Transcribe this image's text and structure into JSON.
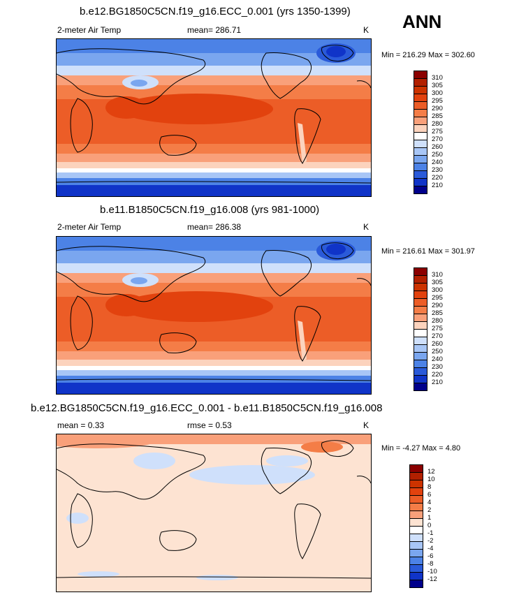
{
  "season": "ANN",
  "panels": [
    {
      "title": "b.e12.BG1850C5CN.f19_g16.ECC_0.001 (yrs 1350-1399)",
      "left_label": "2-meter Air Temp",
      "mean_label": "mean= 286.71",
      "rmse_label": "",
      "units": "K",
      "minmax": "Min = 216.29 Max = 302.60",
      "colorbar_labels": [
        "310",
        "305",
        "300",
        "295",
        "290",
        "285",
        "280",
        "275",
        "270",
        "260",
        "250",
        "240",
        "230",
        "220",
        "210"
      ],
      "colors": [
        "#8b0000",
        "#b22000",
        "#cc3300",
        "#e2420e",
        "#ec5d27",
        "#f47d47",
        "#f9a07a",
        "#fcd3bd",
        "#ffffff",
        "#cfe0fb",
        "#a8c6f6",
        "#7aa6ef",
        "#4c82e6",
        "#2a5ad9",
        "#1034c8",
        "#00008b"
      ]
    },
    {
      "title": "b.e11.B1850C5CN.f19_g16.008 (yrs 981-1000)",
      "left_label": "2-meter Air Temp",
      "mean_label": "mean= 286.38",
      "rmse_label": "",
      "units": "K",
      "minmax": "Min = 216.61 Max = 301.97",
      "colorbar_labels": [
        "310",
        "305",
        "300",
        "295",
        "290",
        "285",
        "280",
        "275",
        "270",
        "260",
        "250",
        "240",
        "230",
        "220",
        "210"
      ],
      "colors": [
        "#8b0000",
        "#b22000",
        "#cc3300",
        "#e2420e",
        "#ec5d27",
        "#f47d47",
        "#f9a07a",
        "#fcd3bd",
        "#ffffff",
        "#cfe0fb",
        "#a8c6f6",
        "#7aa6ef",
        "#4c82e6",
        "#2a5ad9",
        "#1034c8",
        "#00008b"
      ]
    },
    {
      "title": "b.e12.BG1850C5CN.f19_g16.ECC_0.001 - b.e11.B1850C5CN.f19_g16.008",
      "left_label": "mean =   0.33",
      "mean_label": "rmse =   0.53",
      "rmse_label": "",
      "units": "K",
      "minmax": "Min =  -4.27 Max =   4.80",
      "colorbar_labels": [
        "12",
        "10",
        "8",
        "6",
        "4",
        "2",
        "1",
        "0",
        "-1",
        "-2",
        "-4",
        "-6",
        "-8",
        "-10",
        "-12"
      ],
      "colors": [
        "#8b0000",
        "#b22000",
        "#cc3300",
        "#e2420e",
        "#ec5d27",
        "#f47d47",
        "#f9a07a",
        "#fde3d2",
        "#ffffff",
        "#cfe0fb",
        "#a8c6f6",
        "#7aa6ef",
        "#4c82e6",
        "#2a5ad9",
        "#1034c8",
        "#00008b"
      ]
    }
  ]
}
